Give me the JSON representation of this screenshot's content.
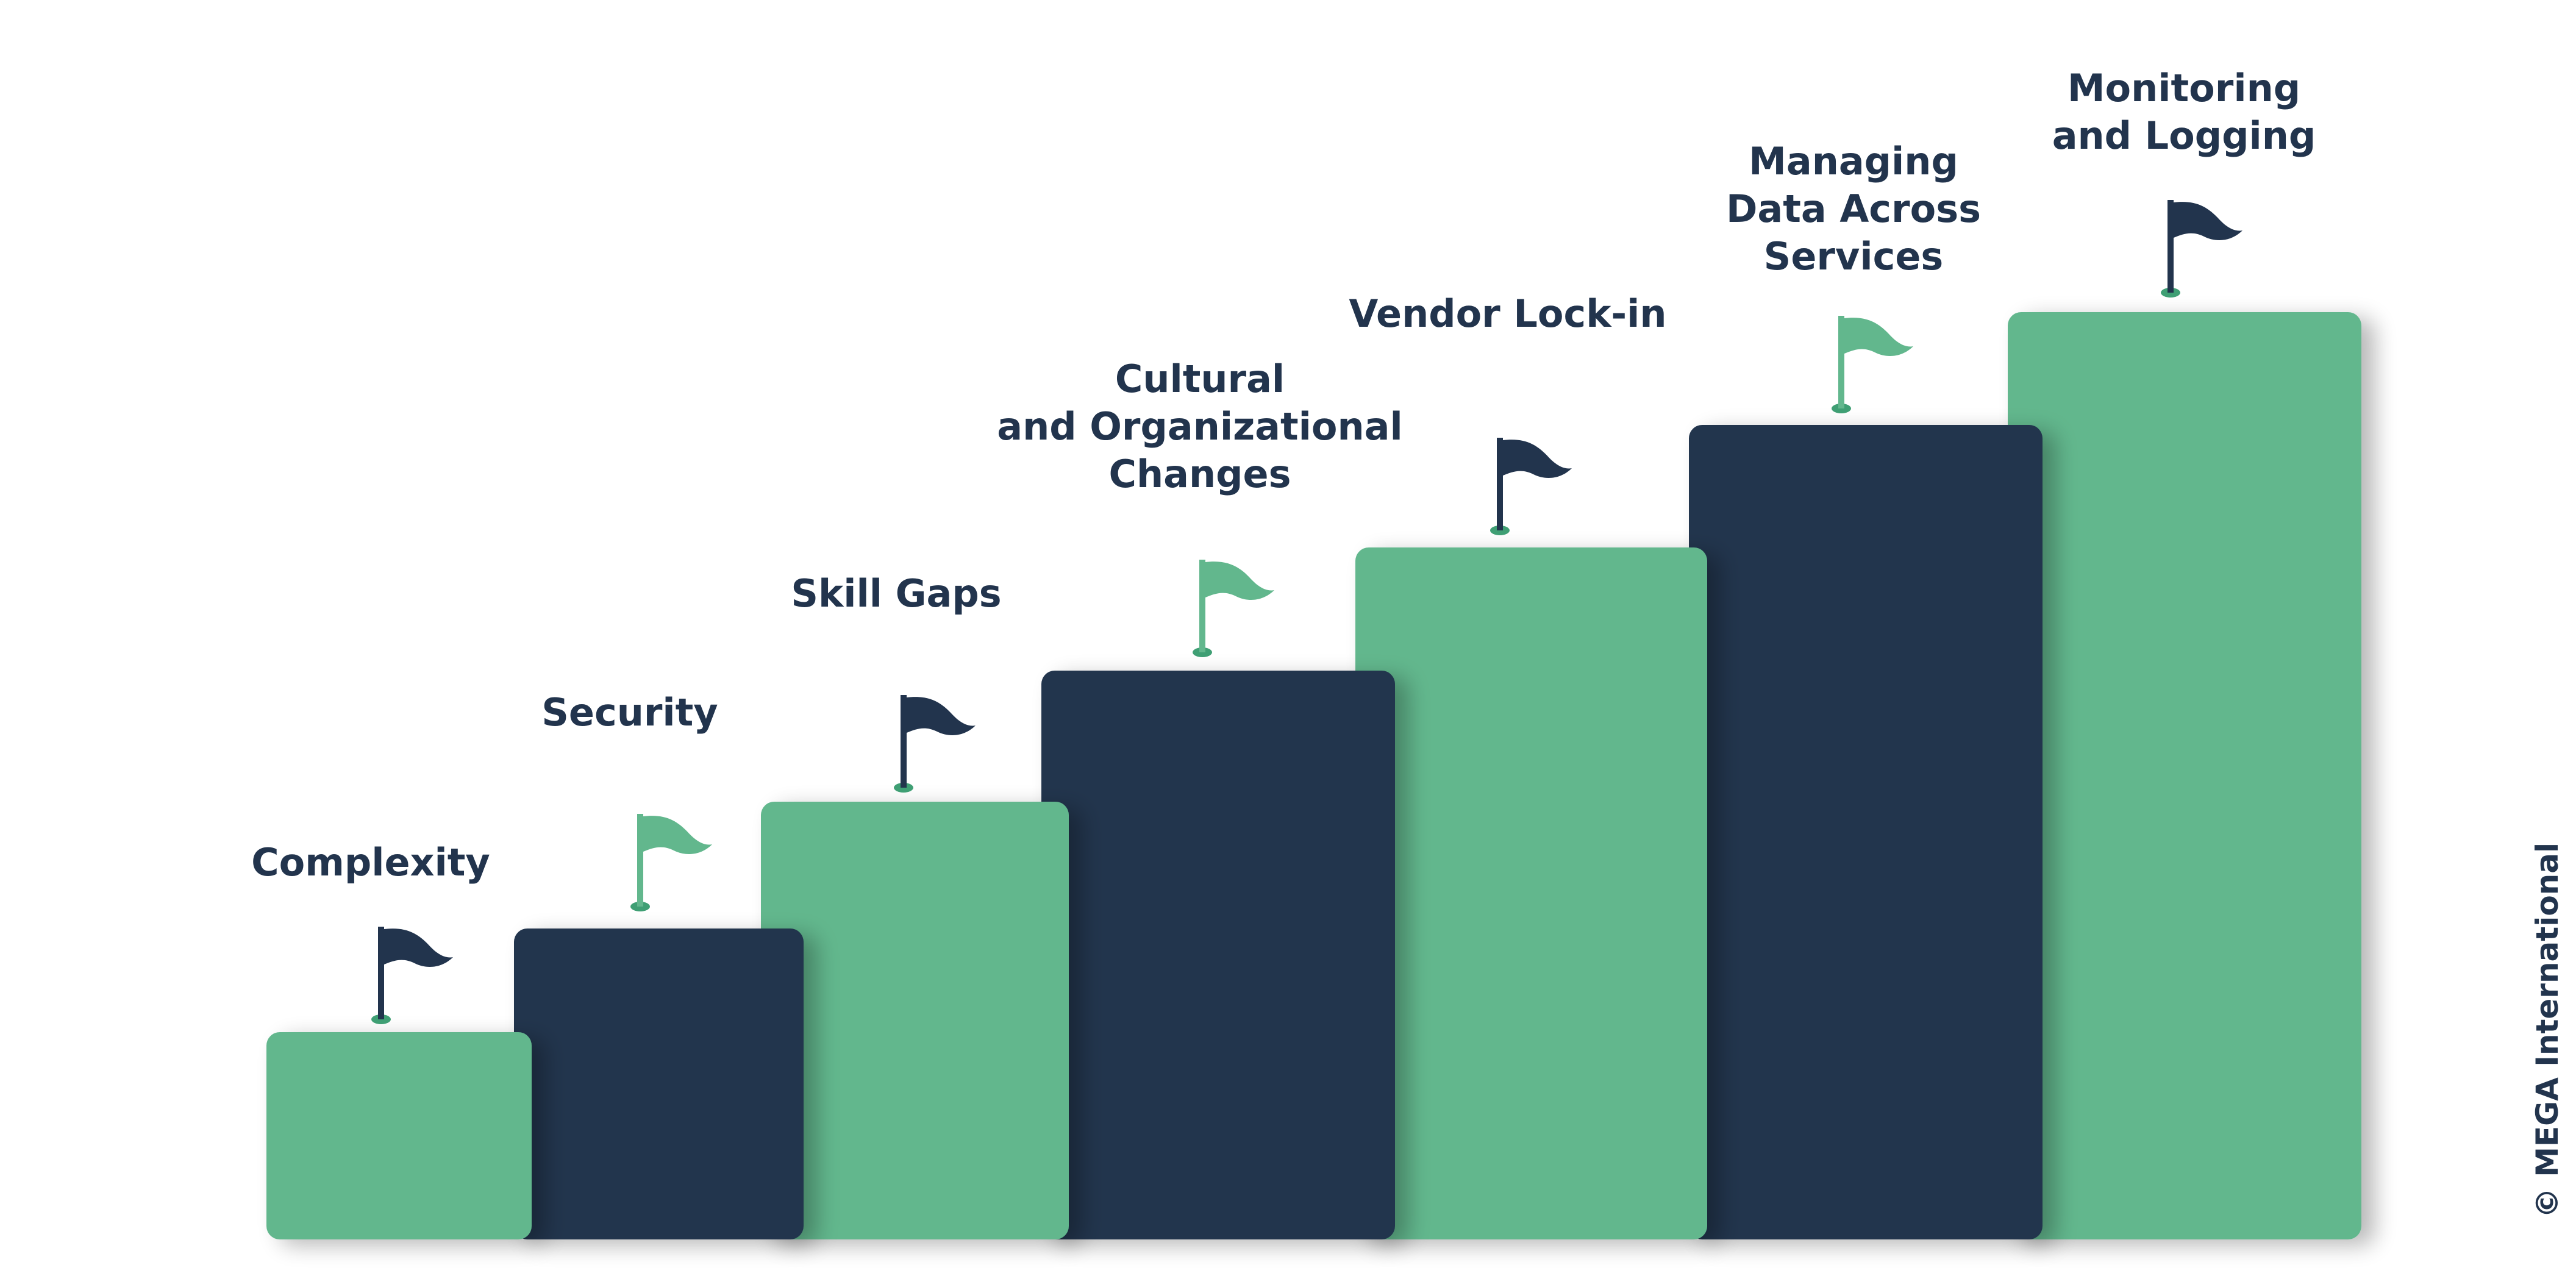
{
  "colors": {
    "green": "#62b78d",
    "navy": "#22344d",
    "text": "#22344d",
    "background": "#ffffff"
  },
  "steps": [
    {
      "lines": [
        "Complexity"
      ],
      "color": "green",
      "flag_color": "navy"
    },
    {
      "lines": [
        "Security"
      ],
      "color": "navy",
      "flag_color": "green"
    },
    {
      "lines": [
        "Skill Gaps"
      ],
      "color": "green",
      "flag_color": "navy"
    },
    {
      "lines": [
        "Cultural",
        "and Organizational",
        "Changes"
      ],
      "color": "navy",
      "flag_color": "green"
    },
    {
      "lines": [
        "Vendor Lock-in"
      ],
      "color": "green",
      "flag_color": "navy"
    },
    {
      "lines": [
        "Managing",
        "Data Across",
        "Services"
      ],
      "color": "navy",
      "flag_color": "green"
    },
    {
      "lines": [
        "Monitoring",
        "and Logging"
      ],
      "color": "green",
      "flag_color": "navy"
    }
  ],
  "flag_icon": "flag-icon",
  "copyright": "© MEGA International"
}
